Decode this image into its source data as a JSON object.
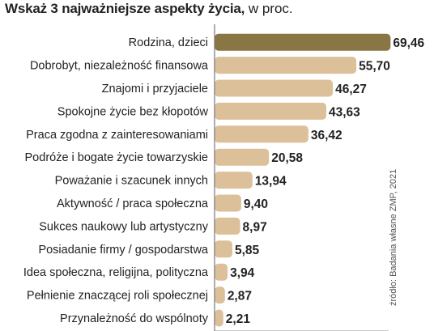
{
  "title": {
    "bold": "Wskaż 3 najważniejsze aspekty życia,",
    "unit": " w proc."
  },
  "source": "źródło: Badania własne ZMP, 2021",
  "colors": {
    "highlight": "#8a7645",
    "bar": "#dcc09a",
    "axis": "#777777",
    "label": "#222222"
  },
  "chart_data": {
    "type": "bar",
    "orientation": "horizontal",
    "categories": [
      "Rodzina, dzieci",
      "Dobrobyt, niezależność finansowa",
      "Znajomi i przyjaciele",
      "Spokojne życie bez kłopotów",
      "Praca zgodna z zainteresowaniami",
      "Podróże i bogate życie towarzyskie",
      "Poważanie i szacunek innych",
      "Aktywność / praca społeczna",
      "Sukces naukowy lub artystyczny",
      "Posiadanie firmy / gospodarstwa",
      "Idea społeczna, religijna, polityczna",
      "Pełnienie znaczącej roli społecznej",
      "Przynależność do wspólnoty"
    ],
    "values": [
      69.46,
      55.7,
      46.27,
      43.63,
      36.42,
      20.58,
      13.94,
      9.4,
      8.97,
      5.85,
      3.94,
      2.87,
      2.21
    ],
    "value_labels": [
      "69,46",
      "55,70",
      "46,27",
      "43,63",
      "36,42",
      "20,58",
      "13,94",
      "9,40",
      "8,97",
      "5,85",
      "3,94",
      "2,87",
      "2,21"
    ],
    "x_ticks": [
      "0",
      "14",
      "28",
      "42",
      "56",
      "70"
    ],
    "xlim": [
      0,
      70
    ],
    "highlight_index": 0,
    "grid": false
  }
}
